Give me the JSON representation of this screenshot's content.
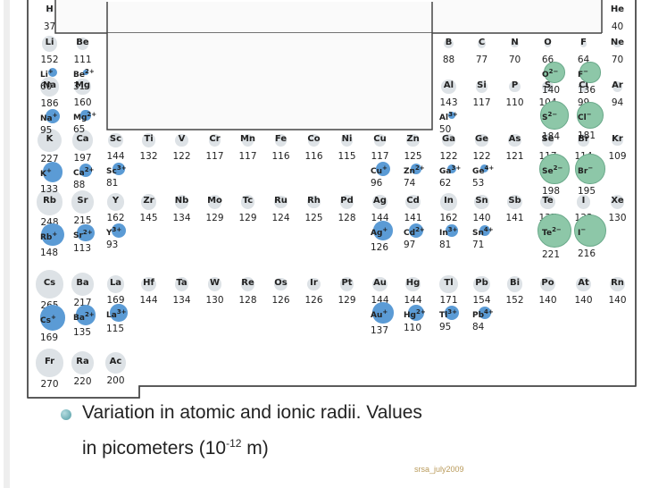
{
  "caption": {
    "line1": "Variation in atomic and ionic radii. Values",
    "line2_prefix": "in picometers (10",
    "line2_exp": "-12",
    "line2_suffix": " m)"
  },
  "footer": "srsa_july2009",
  "colors": {
    "atom": "#dde2e6",
    "cation": "#5b9bd5",
    "anion": "#8dc7a8"
  },
  "elements": [
    {
      "s": "H",
      "r": "37",
      "c": 0,
      "row": 0
    },
    {
      "s": "He",
      "r": "40",
      "c": 17,
      "row": 0
    },
    {
      "s": "Li",
      "r": "152",
      "c": 0,
      "row": 1
    },
    {
      "s": "Be",
      "r": "111",
      "c": 1,
      "row": 1
    },
    {
      "s": "B",
      "r": "88",
      "c": 12,
      "row": 1
    },
    {
      "s": "C",
      "r": "77",
      "c": 13,
      "row": 1
    },
    {
      "s": "N",
      "r": "70",
      "c": 14,
      "row": 1
    },
    {
      "s": "O",
      "r": "66",
      "c": 15,
      "row": 1
    },
    {
      "s": "F",
      "r": "64",
      "c": 16,
      "row": 1
    },
    {
      "s": "Ne",
      "r": "70",
      "c": 17,
      "row": 1
    },
    {
      "s": "Na",
      "r": "186",
      "c": 0,
      "row": 2
    },
    {
      "s": "Mg",
      "r": "160",
      "c": 1,
      "row": 2
    },
    {
      "s": "Al",
      "r": "143",
      "c": 12,
      "row": 2
    },
    {
      "s": "Si",
      "r": "117",
      "c": 13,
      "row": 2
    },
    {
      "s": "P",
      "r": "110",
      "c": 14,
      "row": 2
    },
    {
      "s": "S",
      "r": "104",
      "c": 15,
      "row": 2
    },
    {
      "s": "Cl",
      "r": "99",
      "c": 16,
      "row": 2
    },
    {
      "s": "Ar",
      "r": "94",
      "c": 17,
      "row": 2
    },
    {
      "s": "K",
      "r": "227",
      "c": 0,
      "row": 3
    },
    {
      "s": "Ca",
      "r": "197",
      "c": 1,
      "row": 3
    },
    {
      "s": "Sc",
      "r": "144",
      "c": 2,
      "row": 3
    },
    {
      "s": "Ti",
      "r": "132",
      "c": 3,
      "row": 3
    },
    {
      "s": "V",
      "r": "122",
      "c": 4,
      "row": 3
    },
    {
      "s": "Cr",
      "r": "117",
      "c": 5,
      "row": 3
    },
    {
      "s": "Mn",
      "r": "117",
      "c": 6,
      "row": 3
    },
    {
      "s": "Fe",
      "r": "116",
      "c": 7,
      "row": 3
    },
    {
      "s": "Co",
      "r": "116",
      "c": 8,
      "row": 3
    },
    {
      "s": "Ni",
      "r": "115",
      "c": 9,
      "row": 3
    },
    {
      "s": "Cu",
      "r": "117",
      "c": 10,
      "row": 3
    },
    {
      "s": "Zn",
      "r": "125",
      "c": 11,
      "row": 3
    },
    {
      "s": "Ga",
      "r": "122",
      "c": 12,
      "row": 3
    },
    {
      "s": "Ge",
      "r": "122",
      "c": 13,
      "row": 3
    },
    {
      "s": "As",
      "r": "121",
      "c": 14,
      "row": 3
    },
    {
      "s": "Se",
      "r": "117",
      "c": 15,
      "row": 3
    },
    {
      "s": "Br",
      "r": "114",
      "c": 16,
      "row": 3
    },
    {
      "s": "Kr",
      "r": "109",
      "c": 17,
      "row": 3
    },
    {
      "s": "Rb",
      "r": "248",
      "c": 0,
      "row": 4
    },
    {
      "s": "Sr",
      "r": "215",
      "c": 1,
      "row": 4
    },
    {
      "s": "Y",
      "r": "162",
      "c": 2,
      "row": 4
    },
    {
      "s": "Zr",
      "r": "145",
      "c": 3,
      "row": 4
    },
    {
      "s": "Nb",
      "r": "134",
      "c": 4,
      "row": 4
    },
    {
      "s": "Mo",
      "r": "129",
      "c": 5,
      "row": 4
    },
    {
      "s": "Tc",
      "r": "129",
      "c": 6,
      "row": 4
    },
    {
      "s": "Ru",
      "r": "124",
      "c": 7,
      "row": 4
    },
    {
      "s": "Rh",
      "r": "125",
      "c": 8,
      "row": 4
    },
    {
      "s": "Pd",
      "r": "128",
      "c": 9,
      "row": 4
    },
    {
      "s": "Ag",
      "r": "144",
      "c": 10,
      "row": 4
    },
    {
      "s": "Cd",
      "r": "141",
      "c": 11,
      "row": 4
    },
    {
      "s": "In",
      "r": "162",
      "c": 12,
      "row": 4
    },
    {
      "s": "Sn",
      "r": "140",
      "c": 13,
      "row": 4
    },
    {
      "s": "Sb",
      "r": "141",
      "c": 14,
      "row": 4
    },
    {
      "s": "Te",
      "r": "137",
      "c": 15,
      "row": 4
    },
    {
      "s": "I",
      "r": "133",
      "c": 16,
      "row": 4
    },
    {
      "s": "Xe",
      "r": "130",
      "c": 17,
      "row": 4
    },
    {
      "s": "Cs",
      "r": "265",
      "c": 0,
      "row": 5
    },
    {
      "s": "Ba",
      "r": "217",
      "c": 1,
      "row": 5
    },
    {
      "s": "La",
      "r": "169",
      "c": 2,
      "row": 5
    },
    {
      "s": "Hf",
      "r": "144",
      "c": 3,
      "row": 5
    },
    {
      "s": "Ta",
      "r": "134",
      "c": 4,
      "row": 5
    },
    {
      "s": "W",
      "r": "130",
      "c": 5,
      "row": 5
    },
    {
      "s": "Re",
      "r": "128",
      "c": 6,
      "row": 5
    },
    {
      "s": "Os",
      "r": "126",
      "c": 7,
      "row": 5
    },
    {
      "s": "Ir",
      "r": "126",
      "c": 8,
      "row": 5
    },
    {
      "s": "Pt",
      "r": "129",
      "c": 9,
      "row": 5
    },
    {
      "s": "Au",
      "r": "144",
      "c": 10,
      "row": 5
    },
    {
      "s": "Hg",
      "r": "144",
      "c": 11,
      "row": 5
    },
    {
      "s": "Tl",
      "r": "171",
      "c": 12,
      "row": 5
    },
    {
      "s": "Pb",
      "r": "154",
      "c": 13,
      "row": 5
    },
    {
      "s": "Bi",
      "r": "152",
      "c": 14,
      "row": 5
    },
    {
      "s": "Po",
      "r": "140",
      "c": 15,
      "row": 5
    },
    {
      "s": "At",
      "r": "140",
      "c": 16,
      "row": 5
    },
    {
      "s": "Rn",
      "r": "140",
      "c": 17,
      "row": 5
    },
    {
      "s": "Fr",
      "r": "270",
      "c": 0,
      "row": 6
    },
    {
      "s": "Ra",
      "r": "220",
      "c": 1,
      "row": 6
    },
    {
      "s": "Ac",
      "r": "200",
      "c": 2,
      "row": 6
    }
  ],
  "ions": [
    {
      "el": "Li",
      "name": "Li",
      "charge": "+",
      "r": "60",
      "type": "cation"
    },
    {
      "el": "Be",
      "name": "Be",
      "charge": "2+",
      "r": "31",
      "type": "cation"
    },
    {
      "el": "Na",
      "name": "Na",
      "charge": "+",
      "r": "95",
      "type": "cation"
    },
    {
      "el": "Mg",
      "name": "Mg",
      "charge": "2+",
      "r": "65",
      "type": "cation"
    },
    {
      "el": "K",
      "name": "K",
      "charge": "+",
      "r": "133",
      "type": "cation"
    },
    {
      "el": "Ca",
      "name": "Ca",
      "charge": "2+",
      "r": "88",
      "type": "cation"
    },
    {
      "el": "Sc",
      "name": "Sc",
      "charge": "3+",
      "r": "81",
      "type": "cation"
    },
    {
      "el": "Rb",
      "name": "Rb",
      "charge": "+",
      "r": "148",
      "type": "cation"
    },
    {
      "el": "Sr",
      "name": "Sr",
      "charge": "2+",
      "r": "113",
      "type": "cation"
    },
    {
      "el": "Y",
      "name": "Y",
      "charge": "3+",
      "r": "93",
      "type": "cation"
    },
    {
      "el": "Cs",
      "name": "Cs",
      "charge": "+",
      "r": "169",
      "type": "cation"
    },
    {
      "el": "Ba",
      "name": "Ba",
      "charge": "2+",
      "r": "135",
      "type": "cation"
    },
    {
      "el": "La",
      "name": "La",
      "charge": "3+",
      "r": "115",
      "type": "cation"
    },
    {
      "el": "Al",
      "name": "Al",
      "charge": "3+",
      "r": "50",
      "type": "cation"
    },
    {
      "el": "Cu",
      "name": "Cu",
      "charge": "+",
      "r": "96",
      "type": "cation"
    },
    {
      "el": "Zn",
      "name": "Zn",
      "charge": "2+",
      "r": "74",
      "type": "cation"
    },
    {
      "el": "Ga",
      "name": "Ga",
      "charge": "3+",
      "r": "62",
      "type": "cation"
    },
    {
      "el": "Ge",
      "name": "Ge",
      "charge": "4+",
      "r": "53",
      "type": "cation"
    },
    {
      "el": "Ag",
      "name": "Ag",
      "charge": "+",
      "r": "126",
      "type": "cation"
    },
    {
      "el": "Cd",
      "name": "Cd",
      "charge": "2+",
      "r": "97",
      "type": "cation"
    },
    {
      "el": "In",
      "name": "In",
      "charge": "3+",
      "r": "81",
      "type": "cation"
    },
    {
      "el": "Sn",
      "name": "Sn",
      "charge": "4+",
      "r": "71",
      "type": "cation"
    },
    {
      "el": "Au",
      "name": "Au",
      "charge": "+",
      "r": "137",
      "type": "cation"
    },
    {
      "el": "Hg",
      "name": "Hg",
      "charge": "2+",
      "r": "110",
      "type": "cation"
    },
    {
      "el": "Tl",
      "name": "Tl",
      "charge": "3+",
      "r": "95",
      "type": "cation"
    },
    {
      "el": "Pb",
      "name": "Pb",
      "charge": "4+",
      "r": "84",
      "type": "cation"
    },
    {
      "el": "O",
      "name": "O",
      "charge": "2−",
      "r": "140",
      "type": "anion"
    },
    {
      "el": "F",
      "name": "F",
      "charge": "−",
      "r": "136",
      "type": "anion"
    },
    {
      "el": "S",
      "name": "S",
      "charge": "2−",
      "r": "184",
      "type": "anion"
    },
    {
      "el": "Cl",
      "name": "Cl",
      "charge": "−",
      "r": "181",
      "type": "anion"
    },
    {
      "el": "Se",
      "name": "Se",
      "charge": "2−",
      "r": "198",
      "type": "anion"
    },
    {
      "el": "Br",
      "name": "Br",
      "charge": "−",
      "r": "195",
      "type": "anion"
    },
    {
      "el": "Te",
      "name": "Te",
      "charge": "2−",
      "r": "221",
      "type": "anion"
    },
    {
      "el": "I",
      "name": "I",
      "charge": "−",
      "r": "216",
      "type": "anion"
    }
  ]
}
